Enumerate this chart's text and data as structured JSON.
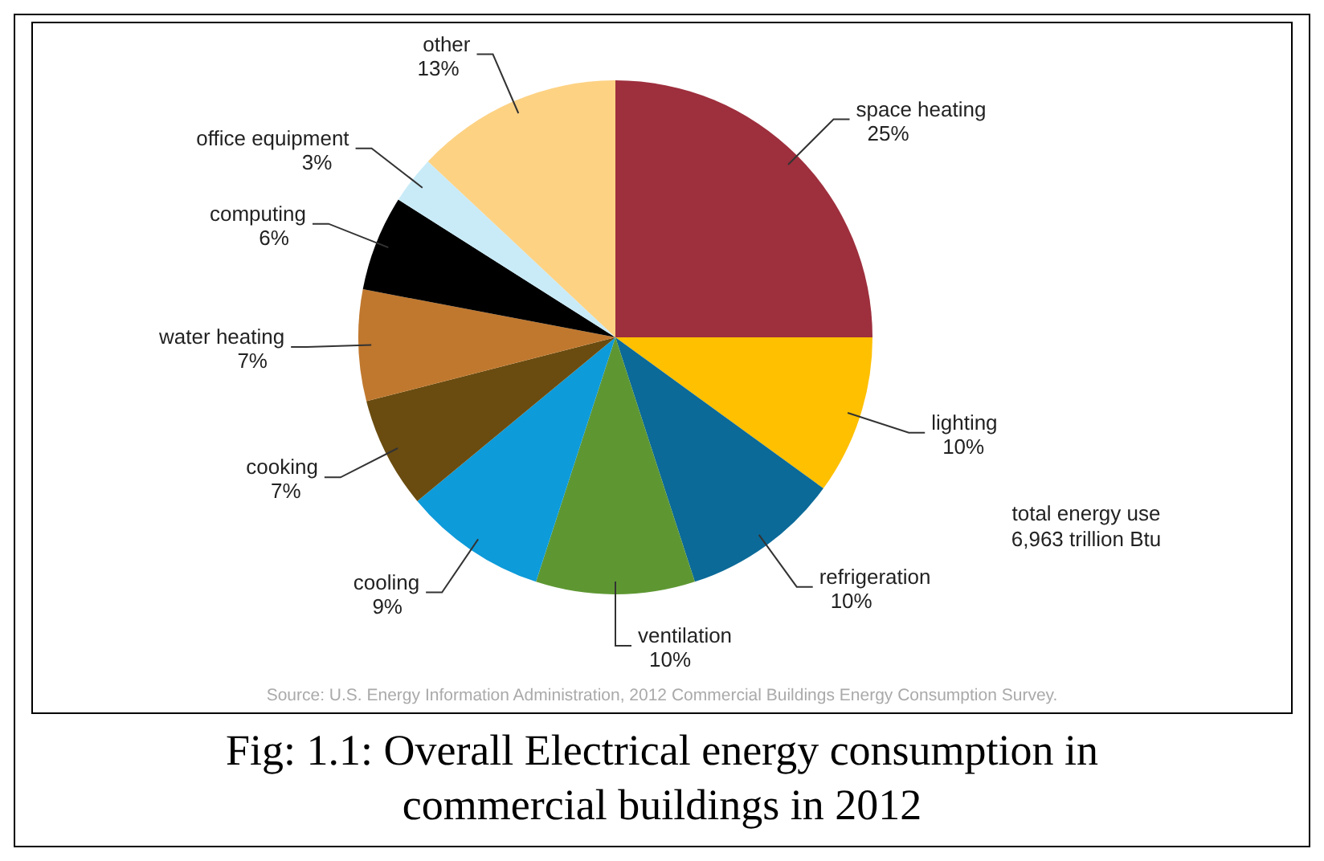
{
  "chart_data": {
    "type": "pie",
    "title": "Fig: 1.1: Overall Electrical energy consumption in commercial buildings in 2012",
    "categories": [
      "space heating",
      "lighting",
      "refrigeration",
      "ventilation",
      "cooling",
      "cooking",
      "water heating",
      "computing",
      "office equipment",
      "other"
    ],
    "values": [
      25,
      10,
      10,
      10,
      9,
      7,
      7,
      6,
      3,
      13
    ],
    "value_labels": [
      "25%",
      "10%",
      "10%",
      "10%",
      "9%",
      "7%",
      "7%",
      "6%",
      "3%",
      "13%"
    ],
    "colors": [
      "#9e2f3d",
      "#ffc000",
      "#0b6a98",
      "#5e9732",
      "#0d9bda",
      "#6a4c10",
      "#c0782e",
      "#000000",
      "#c9ebf8",
      "#fdd283"
    ],
    "annotations": [
      "total energy use\n6,963 trillion Btu",
      "Source: U.S. Energy Information Administration, 2012 Commercial Buildings Energy Consumption Survey."
    ]
  }
}
